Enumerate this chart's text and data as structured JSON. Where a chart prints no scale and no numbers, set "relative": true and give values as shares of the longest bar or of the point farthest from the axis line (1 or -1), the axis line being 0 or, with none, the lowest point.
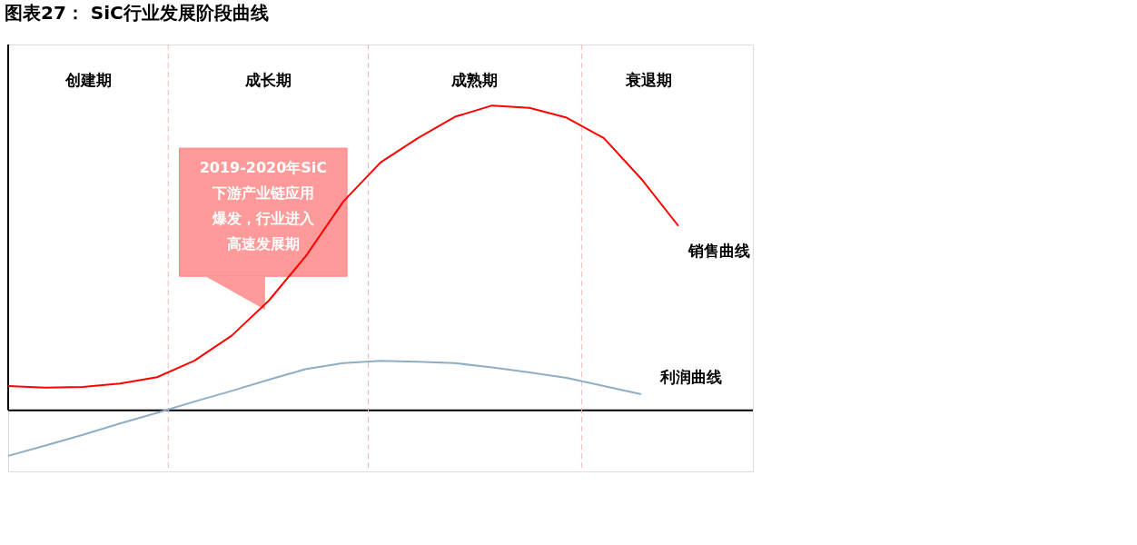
{
  "chart_data": {
    "type": "line",
    "title": "图表27： SiC行业发展阶段曲线",
    "relative": true,
    "categories": [
      null,
      null,
      null,
      null,
      null,
      null,
      null,
      null,
      null,
      null,
      null,
      null,
      null,
      null,
      null,
      null,
      null,
      null,
      null,
      null,
      null
    ],
    "grid": false,
    "legend": false,
    "marker": "none",
    "line_style": "solid",
    "series": [
      {
        "name": "销售曲线",
        "color": "#ff0000",
        "values": [
          0.08,
          0.075,
          0.077,
          0.088,
          0.109,
          0.163,
          0.245,
          0.36,
          0.507,
          0.685,
          0.813,
          0.893,
          0.963,
          1,
          0.992,
          0.96,
          0.893,
          0.76,
          0.605,
          null,
          null
        ]
      },
      {
        "name": "利润曲线",
        "color": "#8eaec6",
        "values": [
          -0.149,
          -0.115,
          -0.08,
          -0.043,
          -0.008,
          0.029,
          0.064,
          0.101,
          0.136,
          0.155,
          0.163,
          0.16,
          0.155,
          0.141,
          0.125,
          0.107,
          0.08,
          0.053,
          null,
          null,
          null
        ]
      }
    ],
    "annotations": [
      "创建期",
      "成长期",
      "成熟期",
      "衰退期",
      "2019-2020年SiC下游产业链应用爆发，行业进入高速发展期"
    ]
  }
}
